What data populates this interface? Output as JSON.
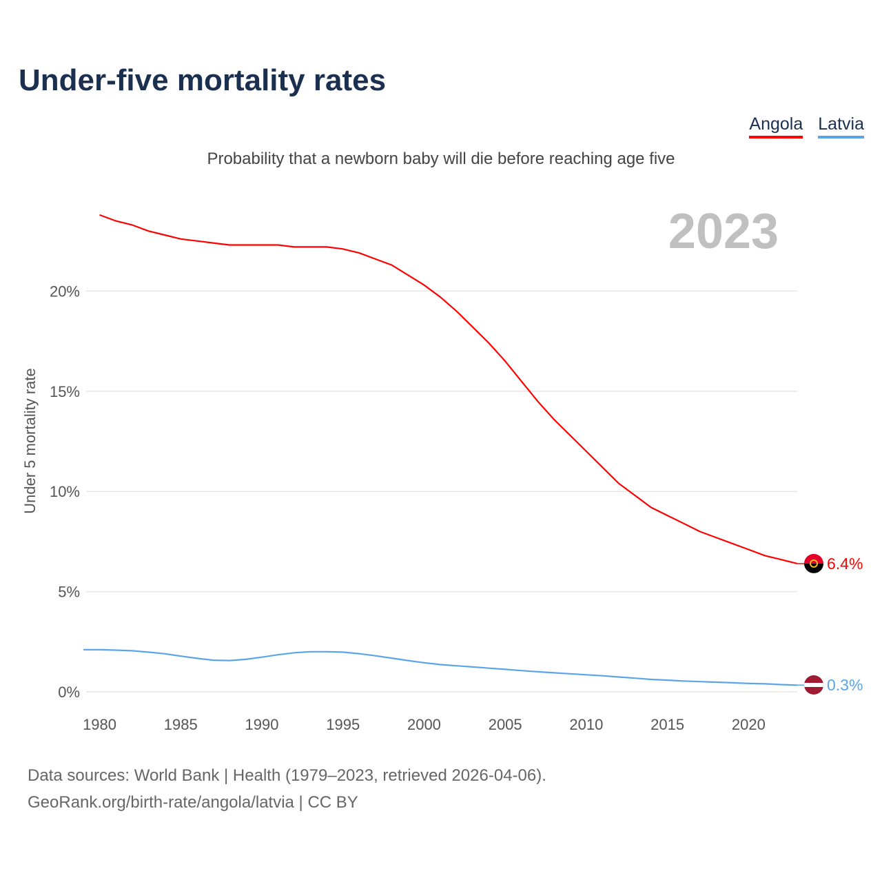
{
  "title": "Under-five mortality rates",
  "subtitle": "Probability that a newborn baby will die before reaching age five",
  "footer": {
    "line1": "Data sources: World Bank | Health (1979–2023, retrieved 2026-04-06).",
    "line2": "GeoRank.org/birth-rate/angola/latvia | CC BY"
  },
  "colors": {
    "angola": "#ff0000",
    "latvia": "#5aa5ea",
    "grid": "#e6e6e6",
    "year": "#c0c0c0"
  },
  "chart_data": {
    "type": "line",
    "title": "Under-five mortality rates",
    "ylabel": "Under 5 mortality rate",
    "xlabel": "",
    "year_label": "2023",
    "xlim": [
      1979,
      2023
    ],
    "ylim": [
      0,
      25
    ],
    "x_ticks": [
      "1980",
      "1985",
      "1990",
      "1995",
      "2000",
      "2005",
      "2010",
      "2015",
      "2020"
    ],
    "y_ticks": [
      {
        "v": 0,
        "label": "0%"
      },
      {
        "v": 5,
        "label": "5%"
      },
      {
        "v": 10,
        "label": "10%"
      },
      {
        "v": 15,
        "label": "15%"
      },
      {
        "v": 20,
        "label": "20%"
      }
    ],
    "grid": true,
    "legend": "top-right",
    "series": [
      {
        "name": "Angola",
        "key": "angola",
        "end_label": "6.4%",
        "x": [
          1980,
          1981,
          1982,
          1983,
          1984,
          1985,
          1986,
          1987,
          1988,
          1989,
          1990,
          1991,
          1992,
          1993,
          1994,
          1995,
          1996,
          1997,
          1998,
          1999,
          2000,
          2001,
          2002,
          2003,
          2004,
          2005,
          2006,
          2007,
          2008,
          2009,
          2010,
          2011,
          2012,
          2013,
          2014,
          2015,
          2016,
          2017,
          2018,
          2019,
          2020,
          2021,
          2022,
          2023
        ],
        "values": [
          23.8,
          23.5,
          23.3,
          23.0,
          22.8,
          22.6,
          22.5,
          22.4,
          22.3,
          22.3,
          22.3,
          22.3,
          22.2,
          22.2,
          22.2,
          22.1,
          21.9,
          21.6,
          21.3,
          20.8,
          20.3,
          19.7,
          19.0,
          18.2,
          17.4,
          16.5,
          15.5,
          14.5,
          13.6,
          12.8,
          12.0,
          11.2,
          10.4,
          9.8,
          9.2,
          8.8,
          8.4,
          8.0,
          7.7,
          7.4,
          7.1,
          6.8,
          6.6,
          6.4
        ]
      },
      {
        "name": "Latvia",
        "key": "latvia",
        "end_label": "0.3%",
        "x": [
          1979,
          1980,
          1981,
          1982,
          1983,
          1984,
          1985,
          1986,
          1987,
          1988,
          1989,
          1990,
          1991,
          1992,
          1993,
          1994,
          1995,
          1996,
          1997,
          1998,
          1999,
          2000,
          2001,
          2002,
          2003,
          2004,
          2005,
          2006,
          2007,
          2008,
          2009,
          2010,
          2011,
          2012,
          2013,
          2014,
          2015,
          2016,
          2017,
          2018,
          2019,
          2020,
          2021,
          2022,
          2023
        ],
        "values": [
          2.1,
          2.1,
          2.08,
          2.05,
          1.98,
          1.9,
          1.78,
          1.67,
          1.58,
          1.56,
          1.62,
          1.73,
          1.85,
          1.95,
          2.0,
          2.0,
          1.98,
          1.9,
          1.8,
          1.68,
          1.56,
          1.45,
          1.36,
          1.3,
          1.24,
          1.18,
          1.12,
          1.06,
          1.0,
          0.95,
          0.9,
          0.85,
          0.8,
          0.74,
          0.68,
          0.62,
          0.58,
          0.54,
          0.51,
          0.48,
          0.45,
          0.42,
          0.4,
          0.36,
          0.33
        ]
      }
    ]
  }
}
